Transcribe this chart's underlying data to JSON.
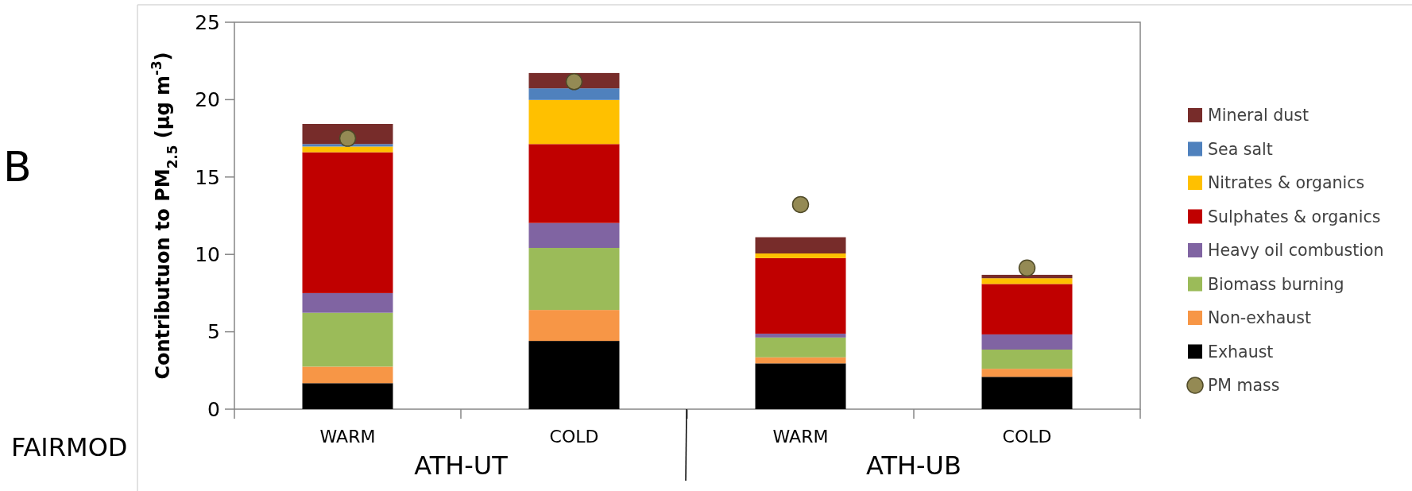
{
  "chart_data": {
    "type": "bar",
    "stacked": true,
    "ylabel": "Contributuon to PM$_{2.5}$ (µg m$^{-3}$)",
    "categories": [
      "WARM",
      "COLD",
      "WARM",
      "COLD"
    ],
    "ylim": [
      0,
      25
    ],
    "yticks": [
      0,
      5,
      10,
      15,
      20,
      25
    ],
    "grid": false,
    "legend": "right",
    "annotations": [
      "ATH-UT",
      "ATH-UB",
      "B",
      "FAIRMOD"
    ],
    "series": [
      {
        "name": "Exhaust",
        "color": "#000000",
        "values": [
          1.68,
          4.41,
          2.96,
          2.09
        ]
      },
      {
        "name": "Non-exhaust",
        "color": "#f79646",
        "values": [
          1.07,
          2.0,
          0.39,
          0.52
        ]
      },
      {
        "name": "Biomass burning",
        "color": "#9bbb59",
        "values": [
          3.48,
          4.01,
          1.28,
          1.24
        ]
      },
      {
        "name": "Heavy oil combustion",
        "color": "#8064a2",
        "values": [
          1.27,
          1.61,
          0.25,
          0.98
        ]
      },
      {
        "name": "Sulphates & organics",
        "color": "#c00000",
        "values": [
          9.1,
          5.1,
          4.88,
          3.26
        ]
      },
      {
        "name": "Nitrates & organics",
        "color": "#ffc000",
        "values": [
          0.37,
          2.85,
          0.3,
          0.37
        ]
      },
      {
        "name": "Sea salt",
        "color": "#4f81bd",
        "values": [
          0.16,
          0.75,
          0,
          0
        ]
      },
      {
        "name": "Mineral dust",
        "color": "#772c2a",
        "values": [
          1.3,
          0.99,
          1.05,
          0.22
        ]
      },
      {
        "name": "PM mass",
        "type": "scatter",
        "marker": "circle",
        "color": "#948a54",
        "values": [
          17.5,
          21.16,
          13.22,
          9.12
        ]
      }
    ]
  }
}
